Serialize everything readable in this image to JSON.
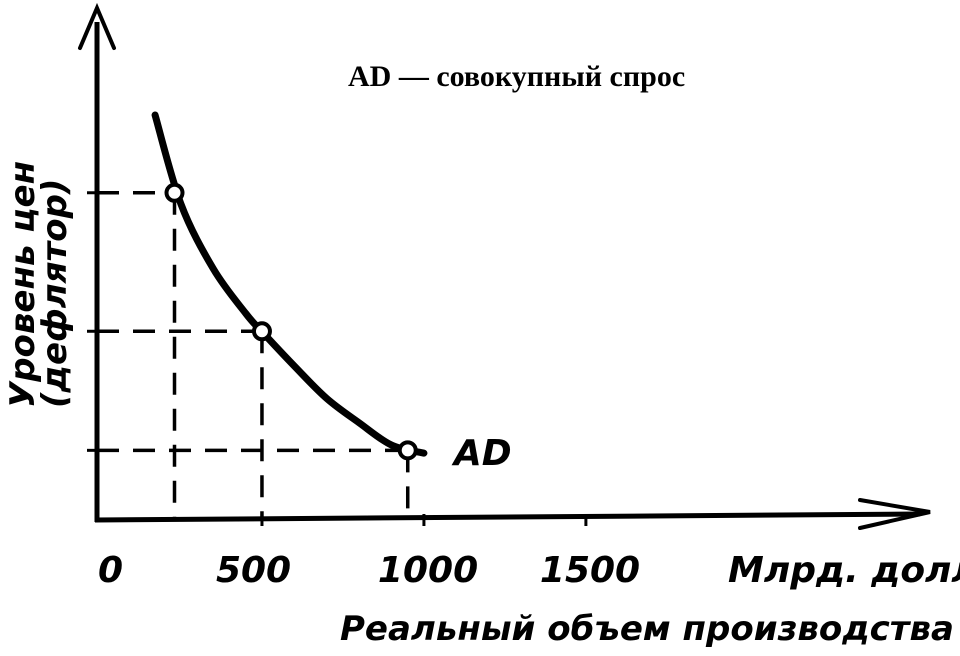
{
  "chart_data": {
    "type": "line",
    "title": "AD — совокупный спрос",
    "ylabel_line1": "Уровень цен",
    "ylabel_line2": "(дефлятор)",
    "xlabel": "Реальный объем производства",
    "x_unit_label": "Млрд. долл.",
    "x_ticks": [
      "0",
      "500",
      "1000",
      "1500"
    ],
    "x_tick_values": [
      0,
      500,
      1000,
      1500
    ],
    "xlim": [
      0,
      2500
    ],
    "ylim": [
      0,
      1
    ],
    "series": [
      {
        "name": "AD",
        "curve": {
          "x": [
            170,
            250,
            350,
            450,
            500,
            600,
            700,
            800,
            900,
            1000
          ],
          "y": [
            1.0,
            0.78,
            0.62,
            0.51,
            0.465,
            0.38,
            0.3,
            0.24,
            0.185,
            0.165
          ]
        },
        "points": {
          "x": [
            230,
            500,
            950
          ],
          "y": [
            0.808,
            0.466,
            0.172
          ]
        }
      }
    ],
    "grid": false,
    "legend": "top-center"
  }
}
